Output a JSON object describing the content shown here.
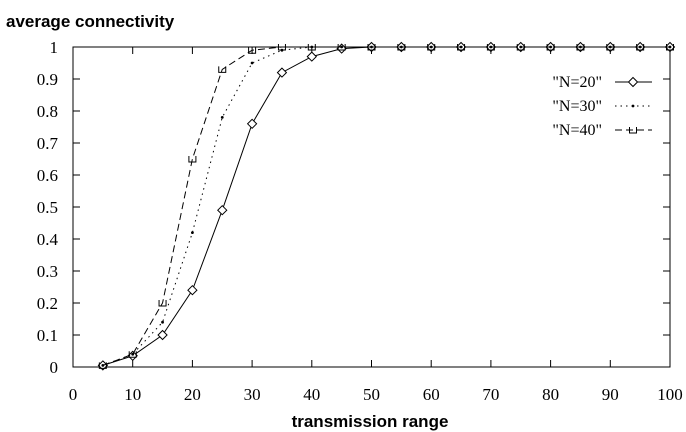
{
  "chart_data": {
    "type": "line",
    "ylabel": "average connectivity",
    "xlabel": "transmission range",
    "xlim": [
      0,
      100
    ],
    "ylim": [
      0,
      1
    ],
    "x_ticks": [
      0,
      10,
      20,
      30,
      40,
      50,
      60,
      70,
      80,
      90,
      100
    ],
    "y_ticks": [
      0,
      0.1,
      0.2,
      0.3,
      0.4,
      0.5,
      0.6,
      0.7,
      0.8,
      0.9,
      1
    ],
    "x_tick_labels": [
      "0",
      "10",
      "20",
      "30",
      "40",
      "50",
      "60",
      "70",
      "80",
      "90",
      "100"
    ],
    "y_tick_labels": [
      "0",
      "0.1",
      "0.2",
      "0.3",
      "0.4",
      "0.5",
      "0.6",
      "0.7",
      "0.8",
      "0.9",
      "1"
    ],
    "grid": false,
    "legend_position": "top-right",
    "series": [
      {
        "name": "\"N=20\"",
        "style": "solid",
        "marker": "diamond",
        "x": [
          5,
          10,
          15,
          20,
          25,
          30,
          35,
          40,
          45,
          50,
          55,
          60,
          65,
          70,
          75,
          80,
          85,
          90,
          95,
          100
        ],
        "values": [
          0.005,
          0.035,
          0.1,
          0.24,
          0.49,
          0.76,
          0.92,
          0.97,
          0.995,
          1,
          1,
          1,
          1,
          1,
          1,
          1,
          1,
          1,
          1,
          1
        ]
      },
      {
        "name": "\"N=30\"",
        "style": "dotted",
        "marker": "dot",
        "x": [
          5,
          10,
          15,
          20,
          25,
          30,
          35,
          40,
          45,
          50,
          55,
          60,
          65,
          70,
          75,
          80,
          85,
          90,
          95,
          100
        ],
        "values": [
          0.005,
          0.04,
          0.14,
          0.42,
          0.78,
          0.95,
          0.99,
          1,
          1,
          1,
          1,
          1,
          1,
          1,
          1,
          1,
          1,
          1,
          1,
          1
        ]
      },
      {
        "name": "\"N=40\"",
        "style": "dashed",
        "marker": "square",
        "x": [
          5,
          10,
          15,
          20,
          25,
          30,
          35,
          40,
          45,
          50,
          55,
          60,
          65,
          70,
          75,
          80,
          85,
          90,
          95,
          100
        ],
        "values": [
          0.005,
          0.04,
          0.2,
          0.65,
          0.93,
          0.99,
          1,
          1,
          1,
          1,
          1,
          1,
          1,
          1,
          1,
          1,
          1,
          1,
          1,
          1
        ]
      }
    ]
  }
}
